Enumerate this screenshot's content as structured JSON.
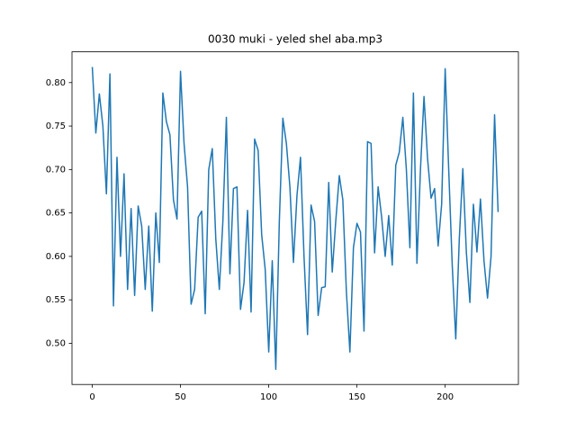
{
  "chart_data": {
    "type": "line",
    "title": "0030 muki - yeled shel aba.mp3",
    "x": [
      0,
      2,
      4,
      6,
      8,
      10,
      12,
      14,
      16,
      18,
      20,
      22,
      24,
      26,
      28,
      30,
      32,
      34,
      36,
      38,
      40,
      42,
      44,
      46,
      48,
      50,
      52,
      54,
      56,
      58,
      60,
      62,
      64,
      66,
      68,
      70,
      72,
      74,
      76,
      78,
      80,
      82,
      84,
      86,
      88,
      90,
      92,
      94,
      96,
      98,
      100,
      102,
      104,
      106,
      108,
      110,
      112,
      114,
      116,
      118,
      120,
      122,
      124,
      126,
      128,
      130,
      132,
      134,
      136,
      138,
      140,
      142,
      144,
      146,
      148,
      150,
      152,
      154,
      156,
      158,
      160,
      162,
      164,
      166,
      168,
      170,
      172,
      174,
      176,
      178,
      180,
      182,
      184,
      186,
      188,
      190,
      192,
      194,
      196,
      198,
      200,
      202,
      204,
      206,
      208,
      210,
      212,
      214,
      216,
      218,
      220,
      222,
      224,
      226,
      228,
      230
    ],
    "series": [
      {
        "color": "#1f77b4",
        "values": [
          0.818,
          0.742,
          0.787,
          0.75,
          0.672,
          0.81,
          0.543,
          0.714,
          0.6,
          0.695,
          0.562,
          0.655,
          0.555,
          0.658,
          0.635,
          0.562,
          0.635,
          0.537,
          0.65,
          0.593,
          0.788,
          0.755,
          0.74,
          0.665,
          0.643,
          0.813,
          0.73,
          0.68,
          0.545,
          0.562,
          0.645,
          0.652,
          0.534,
          0.7,
          0.724,
          0.62,
          0.562,
          0.64,
          0.76,
          0.58,
          0.678,
          0.68,
          0.539,
          0.57,
          0.653,
          0.536,
          0.735,
          0.722,
          0.625,
          0.585,
          0.49,
          0.595,
          0.47,
          0.64,
          0.759,
          0.73,
          0.68,
          0.593,
          0.67,
          0.714,
          0.6,
          0.51,
          0.659,
          0.64,
          0.532,
          0.564,
          0.565,
          0.685,
          0.582,
          0.641,
          0.693,
          0.665,
          0.56,
          0.49,
          0.61,
          0.638,
          0.628,
          0.514,
          0.732,
          0.73,
          0.604,
          0.68,
          0.645,
          0.6,
          0.647,
          0.59,
          0.705,
          0.72,
          0.76,
          0.7,
          0.61,
          0.788,
          0.592,
          0.7,
          0.784,
          0.713,
          0.667,
          0.678,
          0.612,
          0.66,
          0.816,
          0.7,
          0.59,
          0.505,
          0.62,
          0.701,
          0.605,
          0.547,
          0.66,
          0.605,
          0.666,
          0.595,
          0.552,
          0.6,
          0.763,
          0.651
        ]
      }
    ],
    "xlim": [
      -11.5,
      241.5
    ],
    "xticks": [
      0,
      50,
      100,
      150,
      200
    ],
    "ylim": [
      0.4526,
      0.8354
    ],
    "yticks": [
      {
        "value": 0.5,
        "label": "0.50"
      },
      {
        "value": 0.55,
        "label": "0.55"
      },
      {
        "value": 0.6,
        "label": "0.60"
      },
      {
        "value": 0.65,
        "label": "0.65"
      },
      {
        "value": 0.7,
        "label": "0.70"
      },
      {
        "value": 0.75,
        "label": "0.75"
      },
      {
        "value": 0.8,
        "label": "0.80"
      }
    ],
    "grid": false
  }
}
